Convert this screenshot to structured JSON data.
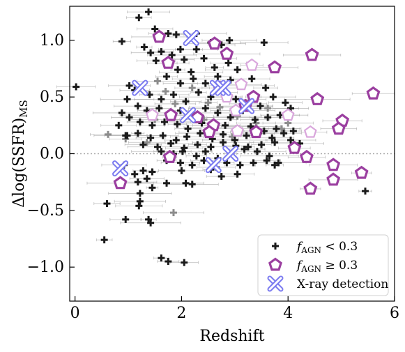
{
  "chart_data": {
    "type": "scatter",
    "xlabel": "Redshift",
    "ylabel_main": "Δlog(SSFR)",
    "ylabel_sub": "MS",
    "xlim": [
      -0.1,
      6.0
    ],
    "ylim": [
      -1.3,
      1.3
    ],
    "xticks": [
      0,
      2,
      4,
      6
    ],
    "xtick_labels": [
      "0",
      "2",
      "4",
      "6"
    ],
    "yticks": [
      -1.0,
      -0.5,
      0.0,
      0.5,
      1.0
    ],
    "ytick_labels": [
      "−1.0",
      "−0.5",
      "0.0",
      "0.5",
      "1.0"
    ],
    "reference_line": {
      "y": 0.0,
      "style": "dotted",
      "color": "#aaaaaa"
    },
    "legend": {
      "placement": "lower-right",
      "entries": [
        {
          "main": "f",
          "sub": "AGN",
          "rest": " < 0.3",
          "marker": "plus"
        },
        {
          "main": "f",
          "sub": "AGN",
          "rest": " ≥ 0.3",
          "marker": "pentagon"
        },
        {
          "main": "X-ray detection",
          "sub": "",
          "rest": "",
          "marker": "cross"
        }
      ]
    },
    "colors": {
      "plus": "#1a1a1a",
      "plus_faint": "#8c8c8c",
      "pentagon": "#9b3fa0",
      "pentagon_faint": "#d9a6dc",
      "cross": "#7b7bf0",
      "errorbar": "#9a9a9a"
    },
    "series": [
      {
        "marker": "plus",
        "points": [
          [
            0.02,
            0.59
          ],
          [
            1.38,
            1.25
          ],
          [
            0.88,
            0.99
          ],
          [
            1.2,
            1.2
          ],
          [
            1.5,
            1.1
          ],
          [
            1.75,
            1.06
          ],
          [
            1.9,
            1.05
          ],
          [
            2.28,
            1.06
          ],
          [
            1.98,
            0.92
          ],
          [
            2.55,
            0.98
          ],
          [
            2.75,
            0.96
          ],
          [
            2.9,
            1.0
          ],
          [
            3.55,
            0.98
          ],
          [
            1.3,
            0.94
          ],
          [
            1.42,
            0.89
          ],
          [
            1.62,
            0.9
          ],
          [
            1.82,
            0.87
          ],
          [
            2.05,
            0.83
          ],
          [
            2.28,
            0.92
          ],
          [
            1.52,
            0.82
          ],
          [
            1.72,
            0.8
          ],
          [
            1.93,
            0.74
          ],
          [
            2.18,
            0.72
          ],
          [
            2.42,
            0.84
          ],
          [
            2.62,
            0.76
          ],
          [
            2.88,
            0.8
          ],
          [
            3.05,
            0.74
          ],
          [
            1.72,
            0.68
          ],
          [
            1.98,
            0.62
          ],
          [
            2.22,
            0.66
          ],
          [
            2.45,
            0.62
          ],
          [
            2.68,
            0.68
          ],
          [
            2.92,
            0.65
          ],
          [
            3.12,
            0.6
          ],
          [
            3.32,
            0.66
          ],
          [
            3.58,
            0.58
          ],
          [
            1.02,
            0.6
          ],
          [
            1.12,
            0.56
          ],
          [
            1.4,
            0.52
          ],
          [
            1.62,
            0.48
          ],
          [
            1.85,
            0.52
          ],
          [
            2.08,
            0.46
          ],
          [
            2.32,
            0.54
          ],
          [
            2.55,
            0.5
          ],
          [
            2.82,
            0.54
          ],
          [
            3.02,
            0.48
          ],
          [
            3.25,
            0.44
          ],
          [
            3.48,
            0.42
          ],
          [
            3.72,
            0.5
          ],
          [
            3.95,
            0.45
          ],
          [
            0.98,
            0.48
          ],
          [
            1.18,
            0.42
          ],
          [
            1.35,
            0.38
          ],
          [
            1.58,
            0.4
          ],
          [
            1.78,
            0.36
          ],
          [
            1.98,
            0.38
          ],
          [
            2.22,
            0.34
          ],
          [
            2.45,
            0.4
          ],
          [
            2.68,
            0.36
          ],
          [
            2.92,
            0.32
          ],
          [
            3.15,
            0.38
          ],
          [
            3.38,
            0.3
          ],
          [
            3.62,
            0.32
          ],
          [
            3.85,
            0.34
          ],
          [
            4.05,
            0.4
          ],
          [
            0.88,
            0.36
          ],
          [
            1.02,
            0.32
          ],
          [
            0.82,
            0.25
          ],
          [
            1.22,
            0.28
          ],
          [
            1.45,
            0.25
          ],
          [
            1.68,
            0.28
          ],
          [
            1.92,
            0.26
          ],
          [
            2.12,
            0.22
          ],
          [
            2.38,
            0.27
          ],
          [
            2.6,
            0.23
          ],
          [
            2.82,
            0.25
          ],
          [
            3.05,
            0.22
          ],
          [
            3.3,
            0.24
          ],
          [
            3.55,
            0.2
          ],
          [
            3.78,
            0.22
          ],
          [
            0.95,
            0.16
          ],
          [
            1.18,
            0.18
          ],
          [
            1.42,
            0.14
          ],
          [
            1.65,
            0.16
          ],
          [
            1.9,
            0.12
          ],
          [
            2.1,
            0.15
          ],
          [
            2.35,
            0.18
          ],
          [
            2.58,
            0.13
          ],
          [
            2.78,
            0.17
          ],
          [
            3.0,
            0.12
          ],
          [
            3.22,
            0.16
          ],
          [
            3.45,
            0.18
          ],
          [
            3.7,
            0.14
          ],
          [
            3.92,
            0.18
          ],
          [
            4.1,
            0.2
          ],
          [
            0.98,
            0.16
          ],
          [
            1.28,
            0.08
          ],
          [
            1.55,
            0.06
          ],
          [
            1.8,
            0.09
          ],
          [
            2.05,
            0.05
          ],
          [
            2.3,
            0.08
          ],
          [
            2.55,
            0.06
          ],
          [
            2.78,
            0.1
          ],
          [
            3.02,
            0.07
          ],
          [
            3.25,
            0.06
          ],
          [
            3.5,
            0.08
          ],
          [
            3.75,
            0.1
          ],
          [
            4.05,
            0.12
          ],
          [
            4.22,
            0.09
          ],
          [
            1.62,
            0.02
          ],
          [
            1.85,
            0.0
          ],
          [
            2.02,
            0.02
          ],
          [
            2.28,
            -0.02
          ],
          [
            2.45,
            0.02
          ],
          [
            2.68,
            -0.04
          ],
          [
            2.92,
            0.0
          ],
          [
            3.18,
            0.04
          ],
          [
            3.42,
            0.02
          ],
          [
            3.65,
            -0.02
          ],
          [
            1.72,
            -0.06
          ],
          [
            1.98,
            -0.08
          ],
          [
            2.2,
            -0.1
          ],
          [
            2.42,
            -0.06
          ],
          [
            2.65,
            -0.12
          ],
          [
            2.85,
            -0.08
          ],
          [
            3.1,
            -0.1
          ],
          [
            3.35,
            -0.08
          ],
          [
            3.6,
            -0.06
          ],
          [
            3.82,
            -0.08
          ],
          [
            1.12,
            -0.18
          ],
          [
            1.28,
            -0.15
          ],
          [
            1.45,
            -0.16
          ],
          [
            2.0,
            -0.15
          ],
          [
            2.55,
            -0.14
          ],
          [
            3.05,
            -0.18
          ],
          [
            3.75,
            -0.1
          ],
          [
            1.18,
            -0.25
          ],
          [
            1.35,
            -0.22
          ],
          [
            1.45,
            -0.3
          ],
          [
            1.72,
            -0.26
          ],
          [
            2.08,
            -0.26
          ],
          [
            2.2,
            -0.27
          ],
          [
            2.75,
            -0.2
          ],
          [
            1.22,
            -0.35
          ],
          [
            1.22,
            -0.42
          ],
          [
            1.2,
            -0.46
          ],
          [
            0.6,
            -0.44
          ],
          [
            0.95,
            -0.58
          ],
          [
            1.38,
            -0.58
          ],
          [
            1.42,
            -0.61
          ],
          [
            0.55,
            -0.76
          ],
          [
            1.62,
            -0.92
          ],
          [
            1.75,
            -0.95
          ],
          [
            2.05,
            -0.96
          ],
          [
            5.45,
            -0.33
          ],
          [
            0.92,
            -0.1
          ]
        ]
      },
      {
        "marker": "plus_faint",
        "points": [
          [
            0.62,
            0.17
          ],
          [
            0.95,
            0.13
          ],
          [
            1.55,
            0.64
          ],
          [
            1.7,
            0.55
          ],
          [
            1.88,
            0.44
          ],
          [
            2.2,
            0.58
          ],
          [
            2.5,
            0.45
          ],
          [
            2.72,
            0.41
          ],
          [
            3.05,
            0.33
          ],
          [
            3.4,
            0.27
          ],
          [
            3.62,
            0.4
          ],
          [
            1.5,
            0.3
          ],
          [
            1.35,
            0.1
          ],
          [
            2.42,
            0.3
          ],
          [
            1.85,
            -0.52
          ],
          [
            2.95,
            0.15
          ],
          [
            3.88,
            0.22
          ],
          [
            4.0,
            0.27
          ]
        ]
      },
      {
        "marker": "pentagon",
        "points": [
          [
            1.58,
            1.03
          ],
          [
            2.62,
            0.97
          ],
          [
            1.75,
            0.8
          ],
          [
            2.85,
            0.88
          ],
          [
            3.75,
            0.76
          ],
          [
            4.45,
            0.87
          ],
          [
            2.72,
            0.58
          ],
          [
            3.35,
            0.5
          ],
          [
            4.55,
            0.48
          ],
          [
            5.6,
            0.53
          ],
          [
            1.8,
            0.34
          ],
          [
            2.3,
            0.32
          ],
          [
            2.6,
            0.25
          ],
          [
            3.2,
            0.42
          ],
          [
            5.02,
            0.29
          ],
          [
            4.95,
            0.22
          ],
          [
            2.52,
            0.19
          ],
          [
            3.4,
            0.19
          ],
          [
            1.78,
            -0.03
          ],
          [
            4.12,
            0.05
          ],
          [
            4.35,
            -0.03
          ],
          [
            0.85,
            -0.26
          ],
          [
            4.85,
            -0.1
          ],
          [
            5.38,
            -0.17
          ],
          [
            4.85,
            -0.23
          ],
          [
            4.42,
            -0.31
          ]
        ]
      },
      {
        "marker": "pentagon_faint",
        "points": [
          [
            3.32,
            0.78
          ],
          [
            3.12,
            0.61
          ],
          [
            2.85,
            0.5
          ],
          [
            3.02,
            0.38
          ],
          [
            1.45,
            0.34
          ],
          [
            4.0,
            0.34
          ],
          [
            3.05,
            0.2
          ],
          [
            4.42,
            0.19
          ]
        ]
      },
      {
        "marker": "cross",
        "points": [
          [
            2.18,
            1.02
          ],
          [
            1.22,
            0.58
          ],
          [
            2.68,
            0.58
          ],
          [
            2.78,
            0.58
          ],
          [
            2.12,
            0.34
          ],
          [
            3.22,
            0.42
          ],
          [
            2.92,
            0.0
          ],
          [
            2.6,
            -0.1
          ],
          [
            0.85,
            -0.13
          ]
        ]
      }
    ]
  }
}
